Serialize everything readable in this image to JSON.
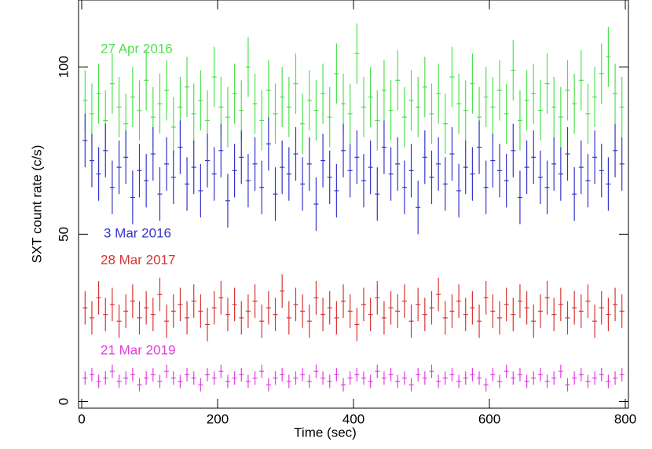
{
  "chart_data": {
    "type": "errorbar",
    "x_label": "Time (sec)",
    "y_label": "SXT count rate (c/s)",
    "x": [
      5,
      15,
      25,
      35,
      45,
      55,
      65,
      75,
      85,
      95,
      105,
      115,
      125,
      135,
      145,
      155,
      165,
      175,
      185,
      195,
      205,
      215,
      225,
      235,
      245,
      255,
      265,
      275,
      285,
      295,
      305,
      315,
      325,
      335,
      345,
      355,
      365,
      375,
      385,
      395,
      405,
      415,
      425,
      435,
      445,
      455,
      465,
      475,
      485,
      495,
      505,
      515,
      525,
      535,
      545,
      555,
      565,
      575,
      585,
      595,
      605,
      615,
      625,
      635,
      645,
      655,
      665,
      675,
      685,
      695,
      705,
      715,
      725,
      735,
      745,
      755,
      765,
      775,
      785,
      795
    ],
    "series": [
      {
        "name": "27 Apr 2016",
        "color": "#4fe04f",
        "error": 9,
        "values": [
          90,
          86,
          92,
          84,
          95,
          88,
          83,
          91,
          87,
          96,
          85,
          89,
          93,
          82,
          88,
          94,
          86,
          90,
          84,
          97,
          88,
          85,
          92,
          87,
          100,
          89,
          84,
          93,
          86,
          91,
          88,
          95,
          83,
          90,
          87,
          92,
          85,
          98,
          89,
          86,
          104,
          88,
          91,
          84,
          93,
          87,
          96,
          85,
          90,
          88,
          94,
          86,
          92,
          83,
          97,
          89,
          87,
          95,
          85,
          91,
          88,
          93,
          86,
          99,
          84,
          90,
          92,
          87,
          95,
          88,
          85,
          93,
          89,
          96,
          86,
          91,
          98,
          103,
          92,
          88
        ]
      },
      {
        "name": "3 Mar 2016",
        "color": "#3535c8",
        "error": 8,
        "values": [
          78,
          72,
          68,
          75,
          64,
          70,
          73,
          61,
          69,
          66,
          74,
          62,
          71,
          67,
          76,
          65,
          70,
          63,
          72,
          68,
          75,
          60,
          69,
          73,
          66,
          71,
          64,
          77,
          62,
          70,
          68,
          74,
          65,
          71,
          59,
          72,
          67,
          63,
          75,
          69,
          73,
          66,
          70,
          62,
          76,
          68,
          71,
          64,
          69,
          58,
          73,
          67,
          71,
          65,
          74,
          63,
          70,
          68,
          76,
          64,
          72,
          69,
          66,
          75,
          61,
          70,
          73,
          67,
          64,
          71,
          68,
          74,
          62,
          70,
          66,
          73,
          69,
          65,
          75,
          71
        ]
      },
      {
        "name": "28 Mar 2017",
        "color": "#d63535",
        "error": 5,
        "values": [
          28,
          25,
          31,
          26,
          29,
          24,
          27,
          30,
          25,
          28,
          26,
          32,
          24,
          27,
          29,
          25,
          30,
          27,
          23,
          28,
          31,
          26,
          29,
          25,
          27,
          30,
          24,
          28,
          26,
          33,
          25,
          29,
          27,
          24,
          31,
          26,
          28,
          25,
          30,
          27,
          23,
          29,
          26,
          31,
          25,
          28,
          27,
          30,
          24,
          29,
          26,
          28,
          32,
          25,
          27,
          30,
          26,
          28,
          24,
          31,
          27,
          25,
          29,
          26,
          30,
          28,
          24,
          27,
          31,
          26,
          29,
          25,
          28,
          27,
          30,
          24,
          28,
          26,
          29,
          27
        ]
      },
      {
        "name": "21 Mar 2019",
        "color": "#e03ee0",
        "error": 2,
        "values": [
          7,
          8,
          6,
          7,
          9,
          6,
          7,
          8,
          5,
          7,
          8,
          6,
          9,
          7,
          6,
          8,
          7,
          5,
          8,
          7,
          9,
          6,
          7,
          8,
          6,
          7,
          9,
          5,
          7,
          8,
          6,
          7,
          8,
          6,
          9,
          7,
          6,
          8,
          5,
          7,
          8,
          7,
          6,
          9,
          7,
          8,
          6,
          7,
          5,
          8,
          7,
          9,
          6,
          7,
          8,
          6,
          7,
          8,
          7,
          5,
          8,
          6,
          9,
          7,
          8,
          6,
          7,
          8,
          6,
          7,
          9,
          5,
          7,
          8,
          6,
          7,
          8,
          6,
          7,
          8
        ]
      }
    ],
    "xlim": [
      -4.6,
      804.6
    ],
    "ylim": [
      -2,
      120
    ],
    "xticks": [
      0,
      200,
      400,
      600,
      800
    ],
    "yticks": [
      0,
      50,
      100
    ]
  }
}
